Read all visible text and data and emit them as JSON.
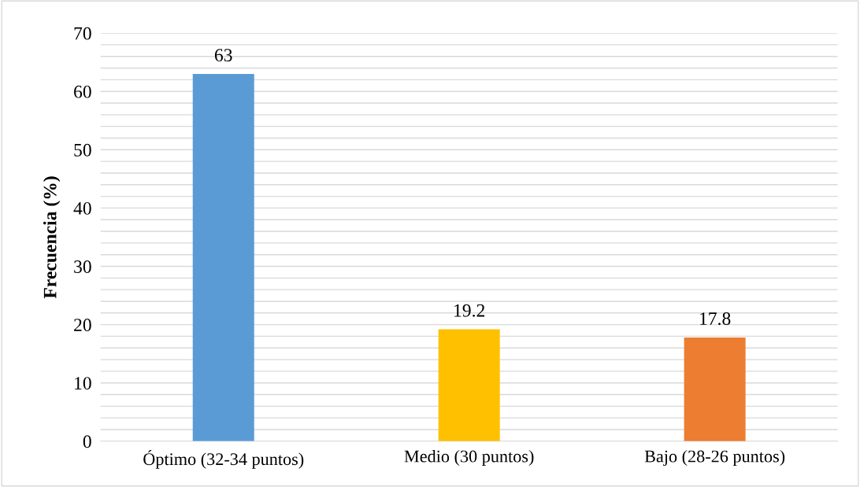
{
  "chart_data": {
    "type": "bar",
    "ylabel": "Frecuencia (%)",
    "categories": [
      "Óptimo (32-34 puntos)",
      "Medio (30 puntos)",
      "Bajo (28-26 puntos)"
    ],
    "values": [
      63,
      19.2,
      17.8
    ],
    "colors": [
      "#5b9bd5",
      "#ffc000",
      "#ed7d31"
    ],
    "ylim": [
      0,
      70
    ],
    "yticks": [
      0,
      {
        "value": 2,
        "label": null
      },
      {
        "value": 4,
        "label": null
      },
      {
        "value": 6,
        "label": null
      },
      {
        "value": 8,
        "label": null
      },
      10,
      {
        "value": 12,
        "label": null
      },
      {
        "value": 14,
        "label": null
      },
      {
        "value": 16,
        "label": null
      },
      {
        "value": 18,
        "label": null
      },
      20,
      {
        "value": 22,
        "label": null
      },
      {
        "value": 24,
        "label": null
      },
      {
        "value": 26,
        "label": null
      },
      {
        "value": 28,
        "label": null
      },
      30,
      {
        "value": 32,
        "label": null
      },
      {
        "value": 34,
        "label": null
      },
      {
        "value": 36,
        "label": null
      },
      {
        "value": 38,
        "label": null
      },
      40,
      {
        "value": 42,
        "label": null
      },
      {
        "value": 44,
        "label": null
      },
      {
        "value": 46,
        "label": null
      },
      {
        "value": 48,
        "label": null
      },
      50,
      {
        "value": 52,
        "label": null
      },
      {
        "value": 54,
        "label": null
      },
      {
        "value": 56,
        "label": null
      },
      {
        "value": 58,
        "label": null
      },
      60,
      {
        "value": 62,
        "label": null
      },
      {
        "value": 64,
        "label": null
      },
      {
        "value": 66,
        "label": null
      },
      {
        "value": 68,
        "label": null
      },
      70
    ],
    "grid": "y",
    "data_labels": true
  }
}
